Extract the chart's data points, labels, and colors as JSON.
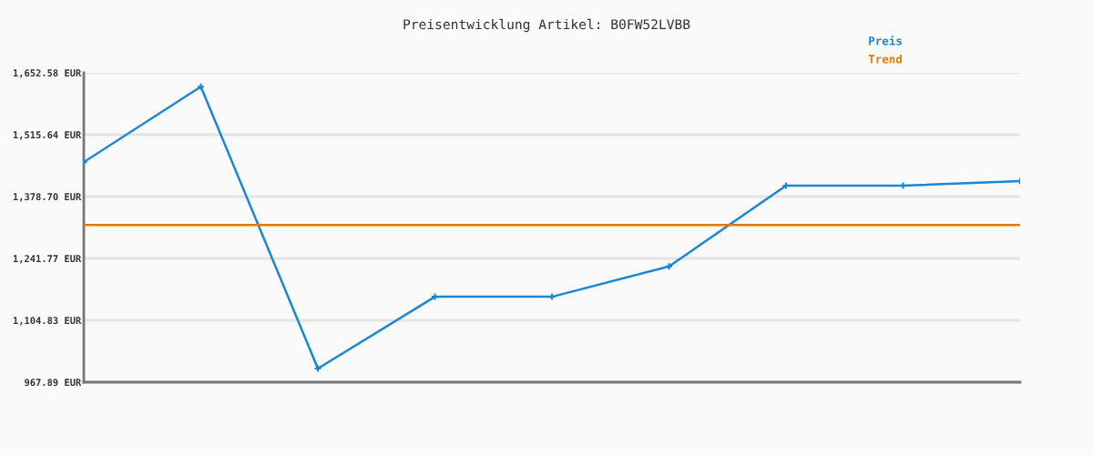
{
  "chart_data": {
    "type": "line",
    "title": "Preisentwicklung Artikel: B0FW52LVBB",
    "categories": [
      null,
      null,
      null,
      null,
      null,
      null,
      null,
      null,
      null
    ],
    "series": [
      {
        "name": "Preis",
        "color": "#1a87d6",
        "marker": "cross",
        "values": [
          1455,
          1622,
          998,
          1157,
          1157,
          1224,
          1403,
          1403,
          1413
        ]
      },
      {
        "name": "Trend",
        "color": "#e07b00",
        "marker": "none",
        "values": [
          1316,
          1316,
          1316,
          1316,
          1316,
          1316,
          1316,
          1316,
          1316
        ]
      }
    ],
    "ylim": [
      967.89,
      1652.58
    ],
    "yticks": [
      {
        "value": 967.89,
        "label": "967.89 EUR"
      },
      {
        "value": 1104.83,
        "label": "1,104.83 EUR"
      },
      {
        "value": 1241.77,
        "label": "1,241.77 EUR"
      },
      {
        "value": 1378.7,
        "label": "1,378.70 EUR"
      },
      {
        "value": 1515.64,
        "label": "1,515.64 EUR"
      },
      {
        "value": 1652.58,
        "label": "1,652.58 EUR"
      }
    ],
    "grid": "y",
    "legend": "top right",
    "line_style": "solid"
  }
}
